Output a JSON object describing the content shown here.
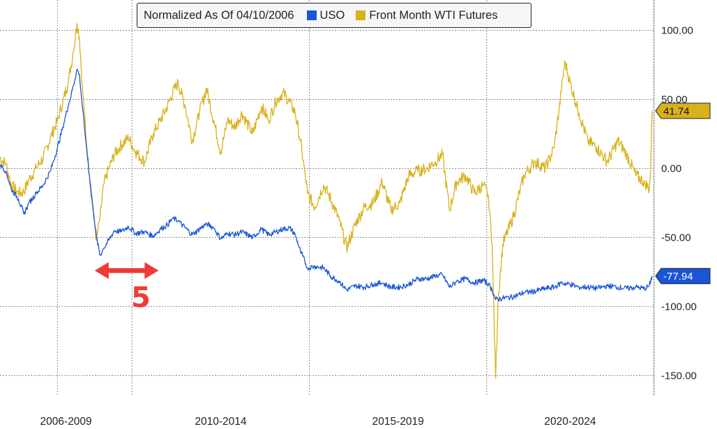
{
  "legend": {
    "title": "Normalized As Of 04/10/2006"
  },
  "annotation": {
    "arrow_label": "5",
    "color": "#f03a34"
  },
  "chart_data": {
    "type": "line",
    "title": "Normalized As Of 04/10/2006",
    "xlabel": "",
    "ylabel": "",
    "x_ticks": [
      "2006-2009",
      "2010-2014",
      "2015-2019",
      "2020-2024"
    ],
    "y_ticks": [
      100,
      50,
      0,
      -50,
      -100,
      -150
    ],
    "y_tick_labels": [
      "100.00",
      "50.00",
      "0.00",
      "-50.00",
      "-100.00",
      "-150.00"
    ],
    "ylim": [
      -165,
      122
    ],
    "xlim": [
      2006.28,
      2024.72
    ],
    "grid": true,
    "legend_position": "top",
    "series": [
      {
        "name": "USO",
        "color": "#1a55d6",
        "last_value_label": "-77.94",
        "points": [
          [
            2006.28,
            3
          ],
          [
            2006.45,
            -2
          ],
          [
            2006.6,
            -15
          ],
          [
            2006.8,
            -22
          ],
          [
            2006.95,
            -33
          ],
          [
            2007.1,
            -25
          ],
          [
            2007.3,
            -18
          ],
          [
            2007.5,
            -12
          ],
          [
            2007.7,
            -2
          ],
          [
            2007.9,
            15
          ],
          [
            2008.05,
            30
          ],
          [
            2008.2,
            45
          ],
          [
            2008.35,
            60
          ],
          [
            2008.45,
            72
          ],
          [
            2008.52,
            68
          ],
          [
            2008.6,
            45
          ],
          [
            2008.7,
            20
          ],
          [
            2008.8,
            -5
          ],
          [
            2008.9,
            -28
          ],
          [
            2009.0,
            -50
          ],
          [
            2009.1,
            -63
          ],
          [
            2009.2,
            -58
          ],
          [
            2009.35,
            -52
          ],
          [
            2009.5,
            -45
          ],
          [
            2009.7,
            -46
          ],
          [
            2009.9,
            -42
          ],
          [
            2010.1,
            -47
          ],
          [
            2010.35,
            -46
          ],
          [
            2010.6,
            -49
          ],
          [
            2010.8,
            -44
          ],
          [
            2011.0,
            -41
          ],
          [
            2011.15,
            -36
          ],
          [
            2011.3,
            -38
          ],
          [
            2011.5,
            -43
          ],
          [
            2011.7,
            -48
          ],
          [
            2011.9,
            -44
          ],
          [
            2012.1,
            -40
          ],
          [
            2012.3,
            -43
          ],
          [
            2012.5,
            -51
          ],
          [
            2012.7,
            -47
          ],
          [
            2012.9,
            -48
          ],
          [
            2013.1,
            -46
          ],
          [
            2013.4,
            -50
          ],
          [
            2013.65,
            -44
          ],
          [
            2013.85,
            -48
          ],
          [
            2014.05,
            -46
          ],
          [
            2014.25,
            -44
          ],
          [
            2014.45,
            -43
          ],
          [
            2014.6,
            -48
          ],
          [
            2014.75,
            -60
          ],
          [
            2014.95,
            -72
          ],
          [
            2015.15,
            -71
          ],
          [
            2015.4,
            -72
          ],
          [
            2015.6,
            -78
          ],
          [
            2015.85,
            -82
          ],
          [
            2016.05,
            -88
          ],
          [
            2016.3,
            -85
          ],
          [
            2016.55,
            -86
          ],
          [
            2016.8,
            -84
          ],
          [
            2017.05,
            -83
          ],
          [
            2017.3,
            -86
          ],
          [
            2017.55,
            -86
          ],
          [
            2017.8,
            -84
          ],
          [
            2018.05,
            -80
          ],
          [
            2018.3,
            -80
          ],
          [
            2018.55,
            -78
          ],
          [
            2018.75,
            -77
          ],
          [
            2018.95,
            -86
          ],
          [
            2019.15,
            -82
          ],
          [
            2019.4,
            -80
          ],
          [
            2019.65,
            -83
          ],
          [
            2019.9,
            -81
          ],
          [
            2020.05,
            -84
          ],
          [
            2020.15,
            -88
          ],
          [
            2020.25,
            -95
          ],
          [
            2020.45,
            -94
          ],
          [
            2020.75,
            -93
          ],
          [
            2021.05,
            -90
          ],
          [
            2021.35,
            -89
          ],
          [
            2021.65,
            -87
          ],
          [
            2021.9,
            -86
          ],
          [
            2022.1,
            -83
          ],
          [
            2022.35,
            -84
          ],
          [
            2022.6,
            -86
          ],
          [
            2022.85,
            -86
          ],
          [
            2023.1,
            -87
          ],
          [
            2023.4,
            -85
          ],
          [
            2023.7,
            -86
          ],
          [
            2023.95,
            -87
          ],
          [
            2024.2,
            -86
          ],
          [
            2024.45,
            -87
          ],
          [
            2024.58,
            -85
          ],
          [
            2024.66,
            -77.94
          ]
        ]
      },
      {
        "name": "Front Month WTI Futures",
        "color": "#d8b21a",
        "last_value_label": "41.74",
        "points": [
          [
            2006.28,
            8
          ],
          [
            2006.45,
            3
          ],
          [
            2006.6,
            -12
          ],
          [
            2006.8,
            -18
          ],
          [
            2006.95,
            -17
          ],
          [
            2007.1,
            -8
          ],
          [
            2007.3,
            0
          ],
          [
            2007.5,
            8
          ],
          [
            2007.7,
            22
          ],
          [
            2007.9,
            35
          ],
          [
            2008.05,
            48
          ],
          [
            2008.2,
            62
          ],
          [
            2008.35,
            85
          ],
          [
            2008.45,
            105
          ],
          [
            2008.52,
            95
          ],
          [
            2008.6,
            60
          ],
          [
            2008.7,
            25
          ],
          [
            2008.8,
            -5
          ],
          [
            2008.9,
            -30
          ],
          [
            2009.0,
            -52
          ],
          [
            2009.1,
            -35
          ],
          [
            2009.2,
            -12
          ],
          [
            2009.35,
            0
          ],
          [
            2009.5,
            10
          ],
          [
            2009.7,
            17
          ],
          [
            2009.9,
            22
          ],
          [
            2010.1,
            12
          ],
          [
            2010.35,
            5
          ],
          [
            2010.6,
            25
          ],
          [
            2010.8,
            35
          ],
          [
            2011.0,
            45
          ],
          [
            2011.15,
            55
          ],
          [
            2011.3,
            62
          ],
          [
            2011.5,
            45
          ],
          [
            2011.7,
            20
          ],
          [
            2011.9,
            40
          ],
          [
            2012.1,
            58
          ],
          [
            2012.3,
            35
          ],
          [
            2012.5,
            12
          ],
          [
            2012.7,
            35
          ],
          [
            2012.9,
            30
          ],
          [
            2013.1,
            40
          ],
          [
            2013.4,
            25
          ],
          [
            2013.65,
            45
          ],
          [
            2013.85,
            35
          ],
          [
            2014.05,
            48
          ],
          [
            2014.25,
            55
          ],
          [
            2014.45,
            48
          ],
          [
            2014.6,
            40
          ],
          [
            2014.75,
            20
          ],
          [
            2014.95,
            -18
          ],
          [
            2015.15,
            -28
          ],
          [
            2015.4,
            -12
          ],
          [
            2015.6,
            -22
          ],
          [
            2015.85,
            -38
          ],
          [
            2016.05,
            -58
          ],
          [
            2016.3,
            -40
          ],
          [
            2016.55,
            -28
          ],
          [
            2016.8,
            -25
          ],
          [
            2017.05,
            -10
          ],
          [
            2017.3,
            -30
          ],
          [
            2017.55,
            -25
          ],
          [
            2017.8,
            -5
          ],
          [
            2018.05,
            -2
          ],
          [
            2018.3,
            0
          ],
          [
            2018.55,
            5
          ],
          [
            2018.75,
            10
          ],
          [
            2018.95,
            -30
          ],
          [
            2019.15,
            -10
          ],
          [
            2019.4,
            -5
          ],
          [
            2019.65,
            -18
          ],
          [
            2019.9,
            -12
          ],
          [
            2020.05,
            -20
          ],
          [
            2020.15,
            -55
          ],
          [
            2020.25,
            -152
          ],
          [
            2020.32,
            -95
          ],
          [
            2020.45,
            -55
          ],
          [
            2020.75,
            -35
          ],
          [
            2021.05,
            -5
          ],
          [
            2021.35,
            5
          ],
          [
            2021.65,
            0
          ],
          [
            2021.9,
            15
          ],
          [
            2022.1,
            55
          ],
          [
            2022.2,
            78
          ],
          [
            2022.35,
            62
          ],
          [
            2022.6,
            40
          ],
          [
            2022.85,
            20
          ],
          [
            2023.1,
            15
          ],
          [
            2023.4,
            5
          ],
          [
            2023.7,
            20
          ],
          [
            2023.95,
            10
          ],
          [
            2024.2,
            -5
          ],
          [
            2024.45,
            -10
          ],
          [
            2024.58,
            -15
          ],
          [
            2024.62,
            -2
          ],
          [
            2024.66,
            41.74
          ]
        ]
      }
    ],
    "annotations": [
      {
        "type": "double-arrow",
        "x_start": 2008.95,
        "x_end": 2010.75,
        "y": -74,
        "label": "5"
      }
    ]
  }
}
